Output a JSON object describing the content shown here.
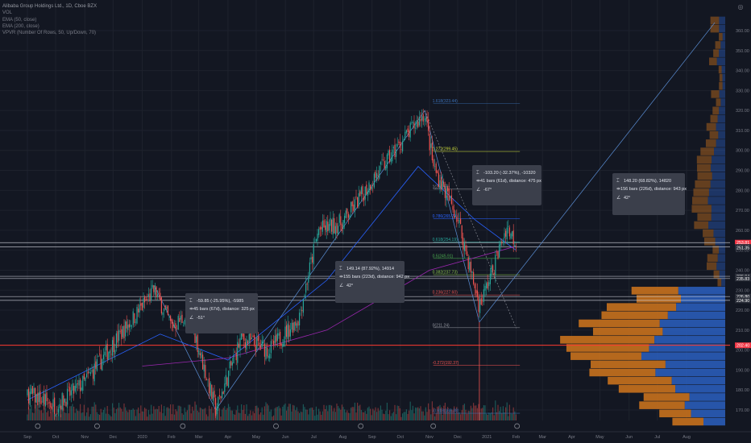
{
  "legend": {
    "symbol": "Alibaba Group Holdings Ltd., 1D, Cboe BZX",
    "vol": "VOL",
    "ema50": "EMA (50, close)",
    "ema200": "EMA (200, close)",
    "vpvr": "VPVR (Number Of Rows, 50, Up/Down, 70)"
  },
  "colors": {
    "background": "#131722",
    "up": "#26a69a",
    "down": "#ef5350",
    "fib_line": "#3a6fb5",
    "ema50": "#2962ff",
    "ema200": "#9c27b0",
    "vpvr_up": "#2a5cb8",
    "vpvr_down": "#c8711d",
    "support_red": "#ff3b30",
    "price_tag": "#f23645"
  },
  "tooltips": [
    {
      "name": "tip-feb-mar",
      "line1": "-59.85 (-25.95%), -5985",
      "line2": "45 bars (67d), distance: 325 px",
      "line3": "-51°"
    },
    {
      "name": "tip-mar-oct",
      "line1": "149.14 (87.92%), 14914",
      "line2": "155 bars (223d), distance: 942 px",
      "line3": "42°"
    },
    {
      "name": "tip-oct-dec",
      "line1": "-103.20 (-32.37%), -10320",
      "line2": "41 bars (61d), distance: 475 px",
      "line3": "-67°"
    },
    {
      "name": "tip-projection",
      "line1": "148.20 (68.82%), 14820",
      "line2": "156 bars (226d), distance: 943 px",
      "line3": "42°"
    }
  ],
  "fib_levels": [
    {
      "label": "1.618(323.44)",
      "price": 323.44
    },
    {
      "label": "1.272(299.45)",
      "price": 299.45
    },
    {
      "label": "1(280.59)",
      "price": 280.59
    },
    {
      "label": "0.786(265.79)",
      "price": 265.79
    },
    {
      "label": "0.618(254.19)",
      "price": 254.19
    },
    {
      "label": "0.5(245.91)",
      "price": 245.91
    },
    {
      "label": "0.382(237.73)",
      "price": 237.73
    },
    {
      "label": "0.236(227.60)",
      "price": 227.6
    },
    {
      "label": "0(211.24)",
      "price": 211.24
    },
    {
      "label": "-0.272(192.37)",
      "price": 192.37
    },
    {
      "label": "-0.618(168.38)",
      "price": 168.38
    }
  ],
  "price_tags": [
    {
      "label": "253.81",
      "price": 253.81,
      "color": "#f23645"
    },
    {
      "label": "251.63",
      "price": 251.63,
      "color": "#2a2e39"
    },
    {
      "label": "251.35",
      "price": 251.35,
      "color": "#2a2e39"
    },
    {
      "label": "236.94",
      "price": 236.94,
      "color": "#2a2e39"
    },
    {
      "label": "235.83",
      "price": 235.83,
      "color": "#2a2e39"
    },
    {
      "label": "226.80",
      "price": 226.8,
      "color": "#2a2e39"
    },
    {
      "label": "224.90",
      "price": 224.9,
      "color": "#2a2e39"
    },
    {
      "label": "202.40",
      "price": 202.4,
      "color": "#f23645"
    }
  ],
  "chart_data": {
    "type": "candlestick",
    "title": "Alibaba Group Holdings Ltd., 1D, Cboe BZX",
    "y_axis": {
      "min": 158,
      "max": 368,
      "ticks": [
        170,
        180,
        190,
        200,
        210,
        220,
        230,
        240,
        250,
        260,
        270,
        280,
        290,
        300,
        310,
        320,
        330,
        340,
        350,
        360
      ]
    },
    "x_axis": {
      "ticks": [
        "Sep",
        "Oct",
        "Nov",
        "Dec",
        "2020",
        "Feb",
        "Mar",
        "Apr",
        "May",
        "Jun",
        "Jul",
        "Aug",
        "Sep",
        "Oct",
        "Nov",
        "Dec",
        "2021",
        "Feb",
        "Mar",
        "Apr",
        "May",
        "Jun",
        "Jul",
        "Aug"
      ]
    },
    "price_path": [
      {
        "date": "2019-09-01",
        "close": 178
      },
      {
        "date": "2019-10-01",
        "close": 172
      },
      {
        "date": "2019-11-01",
        "close": 184
      },
      {
        "date": "2019-12-01",
        "close": 203
      },
      {
        "date": "2020-01-14",
        "close": 230
      },
      {
        "date": "2020-02-01",
        "close": 212
      },
      {
        "date": "2020-02-20",
        "close": 218
      },
      {
        "date": "2020-03-19",
        "close": 170
      },
      {
        "date": "2020-04-15",
        "close": 206
      },
      {
        "date": "2020-05-15",
        "close": 200
      },
      {
        "date": "2020-06-15",
        "close": 216
      },
      {
        "date": "2020-07-06",
        "close": 260
      },
      {
        "date": "2020-08-01",
        "close": 264
      },
      {
        "date": "2020-09-01",
        "close": 285
      },
      {
        "date": "2020-10-27",
        "close": 319
      },
      {
        "date": "2020-11-05",
        "close": 292
      },
      {
        "date": "2020-12-01",
        "close": 266
      },
      {
        "date": "2020-12-24",
        "close": 222
      },
      {
        "date": "2021-01-07",
        "close": 240
      },
      {
        "date": "2021-01-22",
        "close": 262
      },
      {
        "date": "2021-02-01",
        "close": 254
      }
    ],
    "ema50": [
      {
        "date": "2019-09-01",
        "value": 175
      },
      {
        "date": "2020-01-20",
        "value": 208
      },
      {
        "date": "2020-04-01",
        "value": 195
      },
      {
        "date": "2020-07-15",
        "value": 235
      },
      {
        "date": "2020-10-20",
        "value": 292
      },
      {
        "date": "2020-12-20",
        "value": 265
      },
      {
        "date": "2021-02-01",
        "value": 250
      }
    ],
    "ema200": [
      {
        "date": "2020-01-01",
        "value": 192
      },
      {
        "date": "2020-04-01",
        "value": 196
      },
      {
        "date": "2020-07-15",
        "value": 210
      },
      {
        "date": "2020-11-01",
        "value": 240
      },
      {
        "date": "2021-02-01",
        "value": 252
      }
    ],
    "horizontal_lines": [
      253.81,
      251.63,
      236.94,
      235.83,
      226.8,
      224.9,
      202.4
    ],
    "projection": {
      "from": {
        "date": "2020-12-24",
        "price": 214
      },
      "to": {
        "date": "2021-08-31",
        "price": 364
      }
    }
  }
}
